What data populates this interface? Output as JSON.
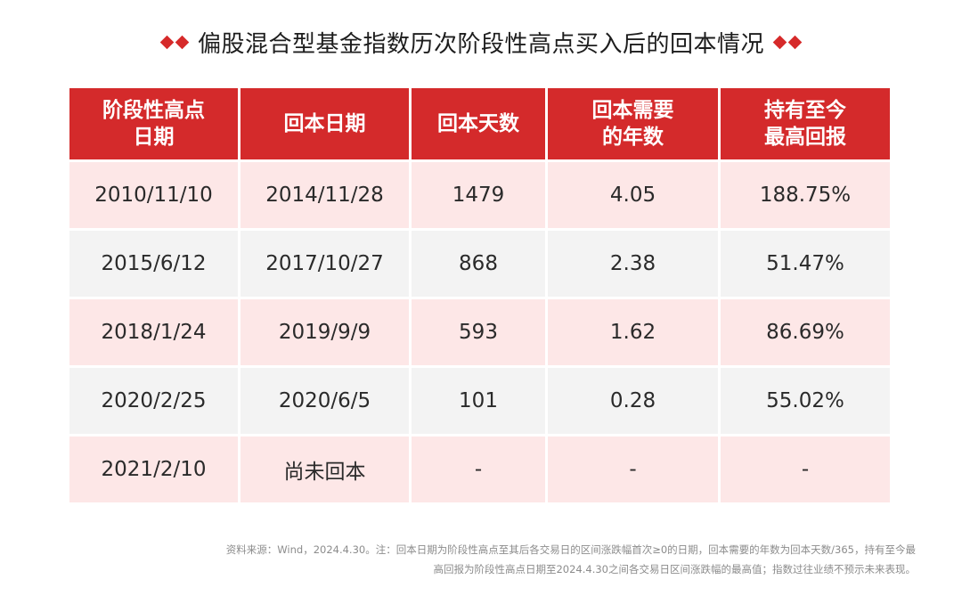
{
  "title": "偏股混合型基金指数历次阶段性高点买入后的回本情况",
  "accent_color": "#d42a2b",
  "table": {
    "headers": [
      [
        "阶段性高点",
        "日期"
      ],
      [
        "回本日期"
      ],
      [
        "回本天数"
      ],
      [
        "回本需要",
        "的年数"
      ],
      [
        "持有至今",
        "最高回报"
      ]
    ],
    "rows": [
      [
        "2010/11/10",
        "2014/11/28",
        "1479",
        "4.05",
        "188.75%"
      ],
      [
        "2015/6/12",
        "2017/10/27",
        "868",
        "2.38",
        "51.47%"
      ],
      [
        "2018/1/24",
        "2019/9/9",
        "593",
        "1.62",
        "86.69%"
      ],
      [
        "2020/2/25",
        "2020/6/5",
        "101",
        "0.28",
        "55.02%"
      ],
      [
        "2021/2/10",
        "尚未回本",
        "-",
        "-",
        "-"
      ]
    ]
  },
  "footnote": {
    "line1": "资料来源：Wind，2024.4.30。注：回本日期为阶段性高点至其后各交易日的区间涨跌幅首次≥0的日期，回本需要的年数为回本天数/365，持有至今最",
    "line2": "高回报为阶段性高点日期至2024.4.30之间各交易日区间涨跌幅的最高值；指数过往业绩不预示未来表现。"
  }
}
